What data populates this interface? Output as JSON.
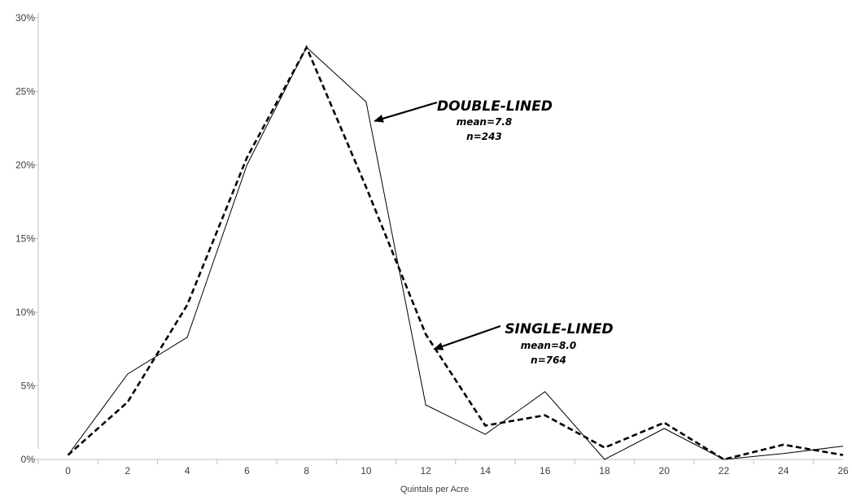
{
  "chart_data": {
    "type": "line",
    "xlabel": "Quintals per Acre",
    "ylabel": "",
    "x": [
      0,
      2,
      4,
      6,
      8,
      10,
      12,
      14,
      16,
      18,
      20,
      22,
      24,
      26
    ],
    "x_ticks": [
      "0",
      "2",
      "4",
      "6",
      "8",
      "10",
      "12",
      "14",
      "16",
      "18",
      "20",
      "22",
      "24",
      "26"
    ],
    "xlim": [
      -1,
      26
    ],
    "ylim": [
      0,
      30
    ],
    "y_ticks": [
      "0%",
      "5%",
      "10%",
      "15%",
      "20%",
      "25%",
      "30%"
    ],
    "y_tick_values": [
      0,
      5,
      10,
      15,
      20,
      25,
      30
    ],
    "grid": false,
    "series": [
      {
        "name": "DOUBLE-LINED",
        "style": "solid",
        "color": "#000000",
        "values": [
          0.3,
          5.8,
          8.3,
          20.0,
          28.0,
          24.3,
          3.7,
          1.7,
          4.6,
          0.0,
          2.1,
          0.0,
          0.4,
          0.9
        ]
      },
      {
        "name": "SINGLE-LINED",
        "style": "dashed",
        "color": "#000000",
        "values": [
          0.3,
          3.9,
          10.5,
          20.5,
          28.0,
          18.5,
          8.5,
          2.3,
          3.0,
          0.8,
          2.5,
          0.0,
          1.0,
          0.3
        ]
      }
    ],
    "annotations": [
      {
        "series": "DOUBLE-LINED",
        "title": "DOUBLE-LINED",
        "lines": [
          "mean=7.8",
          "n=243"
        ],
        "arrow_to": [
          10.3,
          23.0
        ]
      },
      {
        "series": "SINGLE-LINED",
        "title": "SINGLE-LINED",
        "lines": [
          "mean=8.0",
          "n=764"
        ],
        "arrow_to": [
          12.3,
          7.5
        ]
      }
    ]
  }
}
